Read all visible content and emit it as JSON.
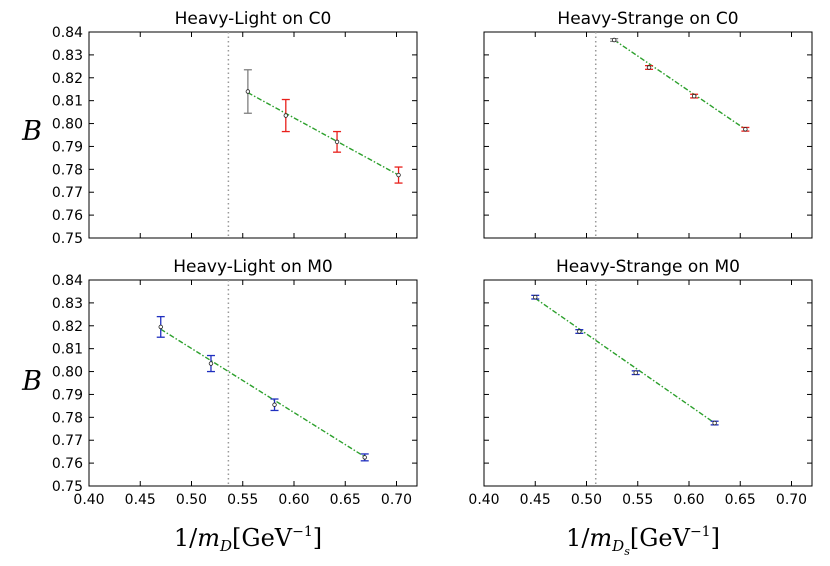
{
  "chart_data": [
    {
      "type": "scatter",
      "title": "Heavy-Light on C0",
      "ylabel": "B",
      "xlabel": "",
      "xlim": [
        0.4,
        0.72
      ],
      "ylim": [
        0.75,
        0.84
      ],
      "xticks": [
        "0.40",
        "0.45",
        "0.50",
        "0.55",
        "0.60",
        "0.65",
        "0.70"
      ],
      "yticks": [
        "0.75",
        "0.76",
        "0.77",
        "0.78",
        "0.79",
        "0.80",
        "0.81",
        "0.82",
        "0.83",
        "0.84"
      ],
      "show_xtick_labels": false,
      "vline": 0.536,
      "fit_line": {
        "x": [
          0.555,
          0.702
        ],
        "y": [
          0.8135,
          0.7775
        ]
      },
      "series": [
        {
          "color": "#808080",
          "points": [
            {
              "x": 0.555,
              "y": 0.814,
              "err": 0.0095
            }
          ]
        },
        {
          "color": "#e8201b",
          "points": [
            {
              "x": 0.592,
              "y": 0.8035,
              "err": 0.007
            },
            {
              "x": 0.642,
              "y": 0.792,
              "err": 0.0045
            },
            {
              "x": 0.702,
              "y": 0.7775,
              "err": 0.0035
            }
          ]
        }
      ]
    },
    {
      "type": "scatter",
      "title": "Heavy-Strange on C0",
      "ylabel": "",
      "xlabel": "",
      "xlim": [
        0.4,
        0.72
      ],
      "ylim": [
        0.75,
        0.84
      ],
      "xticks": [],
      "yticks": [],
      "show_xtick_labels": false,
      "vline": 0.509,
      "fit_line": {
        "x": [
          0.527,
          0.655
        ],
        "y": [
          0.8365,
          0.7975
        ]
      },
      "series": [
        {
          "color": "#808080",
          "points": [
            {
              "x": 0.527,
              "y": 0.8365,
              "err": 0.0006
            }
          ]
        },
        {
          "color": "#e8201b",
          "points": [
            {
              "x": 0.561,
              "y": 0.8245,
              "err": 0.0008
            },
            {
              "x": 0.605,
              "y": 0.812,
              "err": 0.0008
            },
            {
              "x": 0.655,
              "y": 0.7975,
              "err": 0.0008
            }
          ]
        }
      ]
    },
    {
      "type": "scatter",
      "title": "Heavy-Light on M0",
      "ylabel": "B",
      "xlabel": "1/m_D[GeV^-1]",
      "xlim": [
        0.4,
        0.72
      ],
      "ylim": [
        0.75,
        0.84
      ],
      "xticks": [
        "0.40",
        "0.45",
        "0.50",
        "0.55",
        "0.60",
        "0.65",
        "0.70"
      ],
      "yticks": [
        "0.75",
        "0.76",
        "0.77",
        "0.78",
        "0.79",
        "0.80",
        "0.81",
        "0.82",
        "0.83",
        "0.84"
      ],
      "show_xtick_labels": true,
      "vline": 0.536,
      "fit_line": {
        "x": [
          0.47,
          0.67
        ],
        "y": [
          0.8185,
          0.7625
        ]
      },
      "series": [
        {
          "color": "#1f2fbf",
          "points": [
            {
              "x": 0.47,
              "y": 0.8195,
              "err": 0.0045
            },
            {
              "x": 0.519,
              "y": 0.8035,
              "err": 0.0035
            },
            {
              "x": 0.581,
              "y": 0.7855,
              "err": 0.0025
            },
            {
              "x": 0.669,
              "y": 0.7625,
              "err": 0.0015
            }
          ]
        }
      ]
    },
    {
      "type": "scatter",
      "title": "Heavy-Strange on M0",
      "ylabel": "",
      "xlabel": "1/m_{D_s}[GeV^-1]",
      "xlim": [
        0.4,
        0.72
      ],
      "ylim": [
        0.75,
        0.84
      ],
      "xticks": [
        "0.40",
        "0.45",
        "0.50",
        "0.55",
        "0.60",
        "0.65",
        "0.70"
      ],
      "yticks": [],
      "show_xtick_labels": true,
      "vline": 0.509,
      "fit_line": {
        "x": [
          0.45,
          0.625
        ],
        "y": [
          0.832,
          0.7775
        ]
      },
      "series": [
        {
          "color": "#1f2fbf",
          "points": [
            {
              "x": 0.45,
              "y": 0.8325,
              "err": 0.0008
            },
            {
              "x": 0.493,
              "y": 0.8175,
              "err": 0.0008
            },
            {
              "x": 0.548,
              "y": 0.7995,
              "err": 0.0008
            },
            {
              "x": 0.625,
              "y": 0.7775,
              "err": 0.0008
            }
          ]
        }
      ]
    }
  ],
  "labels": {
    "ylabel": "B",
    "xlabel_left_prefix": "1/",
    "xlabel_left_m": "m",
    "xlabel_left_sub": "D",
    "xlabel_right_prefix": "1/",
    "xlabel_right_m": "m",
    "xlabel_right_sub": "D",
    "xlabel_right_subsub": "s",
    "xlabel_unit": "[GeV",
    "xlabel_exp": "−1",
    "xlabel_close": "]"
  }
}
